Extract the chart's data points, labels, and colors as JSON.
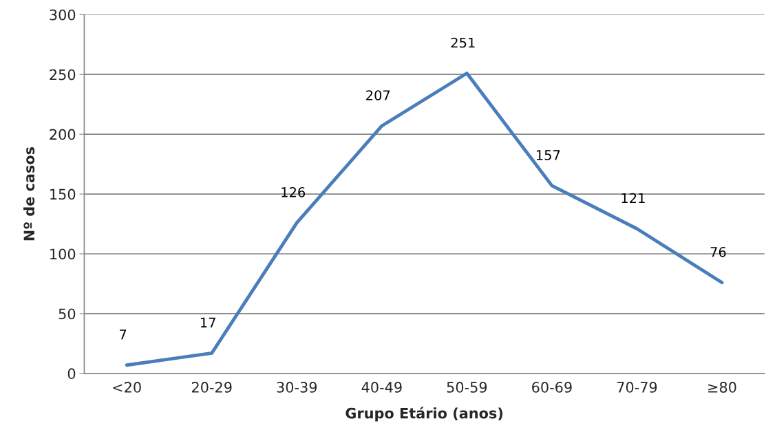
{
  "chart_data": {
    "type": "line",
    "xlabel": "Grupo Etário (anos)",
    "ylabel": "Nº de casos",
    "categories": [
      "<20",
      "20-29",
      "30-39",
      "40-49",
      "50-59",
      "60-69",
      "70-79",
      "≥80"
    ],
    "series": [
      {
        "color": "#4a7ebb",
        "values": [
          7,
          17,
          126,
          207,
          251,
          157,
          121,
          76
        ]
      }
    ],
    "ylim": [
      0,
      300
    ],
    "yticks": [
      0,
      50,
      100,
      150,
      200,
      250,
      300
    ],
    "grid": "y",
    "data_labels": true,
    "marker": "none",
    "line_style": "solid"
  }
}
